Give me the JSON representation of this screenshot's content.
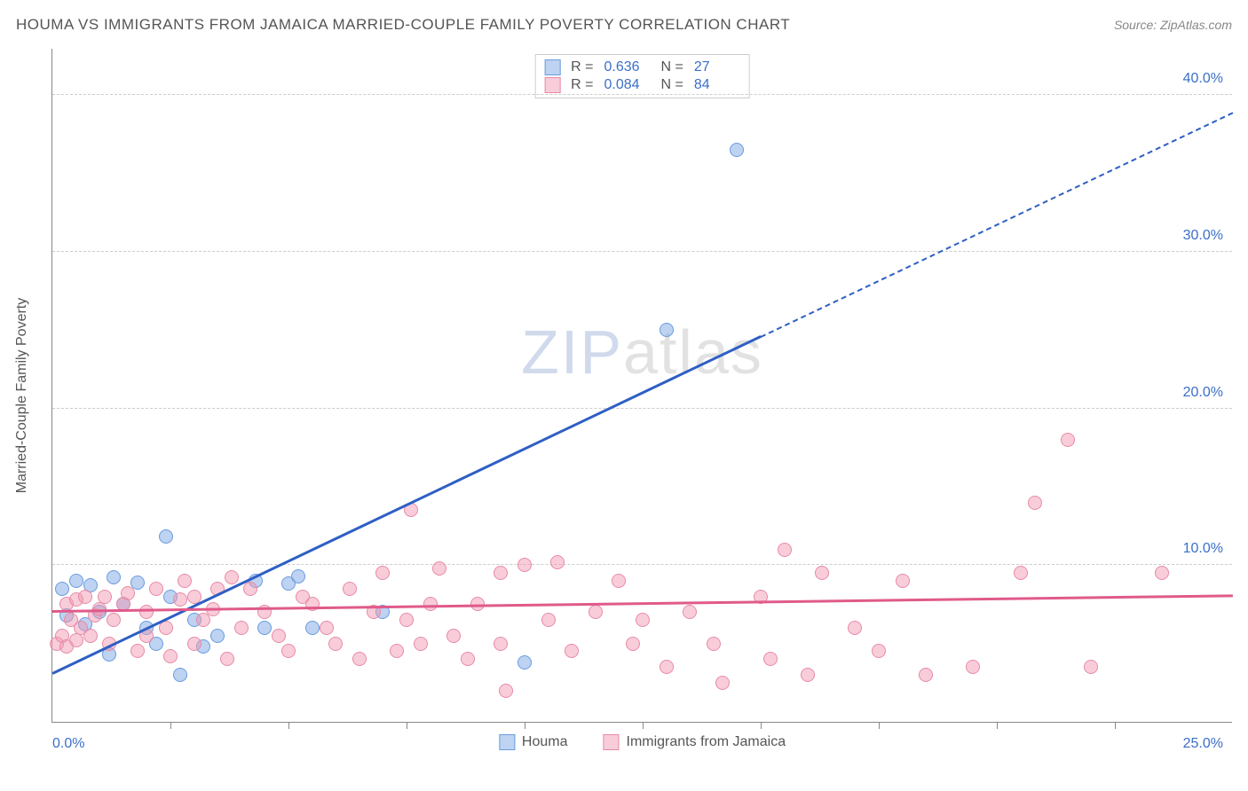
{
  "header": {
    "title": "HOUMA VS IMMIGRANTS FROM JAMAICA MARRIED-COUPLE FAMILY POVERTY CORRELATION CHART",
    "source": "Source: ZipAtlas.com"
  },
  "axes": {
    "y_title": "Married-Couple Family Poverty",
    "x_min_label": "0.0%",
    "x_max_label": "25.0%",
    "xlim": [
      0,
      25
    ],
    "ylim": [
      0,
      43
    ],
    "y_ticks": [
      {
        "value": 10,
        "label": "10.0%"
      },
      {
        "value": 20,
        "label": "20.0%"
      },
      {
        "value": 30,
        "label": "30.0%"
      },
      {
        "value": 40,
        "label": "40.0%"
      }
    ],
    "x_tick_values": [
      2.5,
      5,
      7.5,
      10,
      12.5,
      15,
      17.5,
      20,
      22.5
    ],
    "grid_color": "#cccccc",
    "axis_color": "#888888",
    "tick_label_color": "#3b6fc9"
  },
  "series": [
    {
      "key": "houma",
      "name": "Houma",
      "marker_fill": "rgba(135,175,230,0.55)",
      "marker_stroke": "#6a9be0",
      "marker_radius": 8,
      "line_color": "#2e5fc4",
      "R": "0.636",
      "N": "27",
      "trend": {
        "x1": 0,
        "y1": 3.0,
        "x2": 15,
        "y2": 24.5,
        "dash_to_x": 25,
        "dash_to_y": 38.8
      },
      "points": [
        [
          0.2,
          8.5
        ],
        [
          0.3,
          6.8
        ],
        [
          0.5,
          9.0
        ],
        [
          0.7,
          6.2
        ],
        [
          0.8,
          8.7
        ],
        [
          1.0,
          7.0
        ],
        [
          1.2,
          4.3
        ],
        [
          1.3,
          9.2
        ],
        [
          1.5,
          7.5
        ],
        [
          1.8,
          8.9
        ],
        [
          2.0,
          6.0
        ],
        [
          2.2,
          5.0
        ],
        [
          2.4,
          11.8
        ],
        [
          2.5,
          8.0
        ],
        [
          2.7,
          3.0
        ],
        [
          3.0,
          6.5
        ],
        [
          3.2,
          4.8
        ],
        [
          3.5,
          5.5
        ],
        [
          4.3,
          9.0
        ],
        [
          4.5,
          6.0
        ],
        [
          5.0,
          8.8
        ],
        [
          5.2,
          9.3
        ],
        [
          5.5,
          6.0
        ],
        [
          7.0,
          7.0
        ],
        [
          10.0,
          3.8
        ],
        [
          13.0,
          25.0
        ],
        [
          14.5,
          36.5
        ]
      ]
    },
    {
      "key": "jamaica",
      "name": "Immigrants from Jamaica",
      "marker_fill": "rgba(240,150,175,0.48)",
      "marker_stroke": "#e88aa5",
      "marker_radius": 8,
      "line_color": "#e05a8a",
      "R": "0.084",
      "N": "84",
      "trend": {
        "x1": 0,
        "y1": 7.0,
        "x2": 25,
        "y2": 8.0
      },
      "points": [
        [
          0.1,
          5.0
        ],
        [
          0.2,
          5.5
        ],
        [
          0.3,
          7.5
        ],
        [
          0.3,
          4.8
        ],
        [
          0.4,
          6.5
        ],
        [
          0.5,
          5.2
        ],
        [
          0.5,
          7.8
        ],
        [
          0.6,
          6.0
        ],
        [
          0.7,
          8.0
        ],
        [
          0.8,
          5.5
        ],
        [
          0.9,
          6.8
        ],
        [
          1.0,
          7.2
        ],
        [
          1.1,
          8.0
        ],
        [
          1.2,
          5.0
        ],
        [
          1.3,
          6.5
        ],
        [
          1.5,
          7.5
        ],
        [
          1.6,
          8.2
        ],
        [
          1.8,
          4.5
        ],
        [
          2.0,
          7.0
        ],
        [
          2.0,
          5.5
        ],
        [
          2.2,
          8.5
        ],
        [
          2.4,
          6.0
        ],
        [
          2.5,
          4.2
        ],
        [
          2.7,
          7.8
        ],
        [
          2.8,
          9.0
        ],
        [
          3.0,
          5.0
        ],
        [
          3.0,
          8.0
        ],
        [
          3.2,
          6.5
        ],
        [
          3.4,
          7.2
        ],
        [
          3.5,
          8.5
        ],
        [
          3.7,
          4.0
        ],
        [
          3.8,
          9.2
        ],
        [
          4.0,
          6.0
        ],
        [
          4.2,
          8.5
        ],
        [
          4.5,
          7.0
        ],
        [
          4.8,
          5.5
        ],
        [
          5.0,
          4.5
        ],
        [
          5.3,
          8.0
        ],
        [
          5.5,
          7.5
        ],
        [
          5.8,
          6.0
        ],
        [
          6.0,
          5.0
        ],
        [
          6.3,
          8.5
        ],
        [
          6.5,
          4.0
        ],
        [
          6.8,
          7.0
        ],
        [
          7.0,
          9.5
        ],
        [
          7.3,
          4.5
        ],
        [
          7.5,
          6.5
        ],
        [
          7.6,
          13.5
        ],
        [
          7.8,
          5.0
        ],
        [
          8.0,
          7.5
        ],
        [
          8.2,
          9.8
        ],
        [
          8.5,
          5.5
        ],
        [
          8.8,
          4.0
        ],
        [
          9.0,
          7.5
        ],
        [
          9.5,
          9.5
        ],
        [
          9.5,
          5.0
        ],
        [
          9.6,
          2.0
        ],
        [
          10.0,
          10.0
        ],
        [
          10.5,
          6.5
        ],
        [
          10.7,
          10.2
        ],
        [
          11.0,
          4.5
        ],
        [
          11.5,
          7.0
        ],
        [
          12.0,
          9.0
        ],
        [
          12.3,
          5.0
        ],
        [
          12.5,
          6.5
        ],
        [
          13.0,
          3.5
        ],
        [
          13.5,
          7.0
        ],
        [
          14.0,
          5.0
        ],
        [
          14.2,
          2.5
        ],
        [
          15.0,
          8.0
        ],
        [
          15.2,
          4.0
        ],
        [
          15.5,
          11.0
        ],
        [
          16.0,
          3.0
        ],
        [
          16.3,
          9.5
        ],
        [
          17.0,
          6.0
        ],
        [
          17.5,
          4.5
        ],
        [
          18.0,
          9.0
        ],
        [
          18.5,
          3.0
        ],
        [
          19.5,
          3.5
        ],
        [
          20.5,
          9.5
        ],
        [
          20.8,
          14.0
        ],
        [
          21.5,
          18.0
        ],
        [
          22.0,
          3.5
        ],
        [
          23.5,
          9.5
        ]
      ]
    }
  ],
  "legend_bottom": [
    {
      "key": "houma",
      "label": "Houma"
    },
    {
      "key": "jamaica",
      "label": "Immigrants from Jamaica"
    }
  ],
  "watermark": {
    "part1": "ZIP",
    "part2": "atlas"
  },
  "colors": {
    "background": "#ffffff"
  }
}
